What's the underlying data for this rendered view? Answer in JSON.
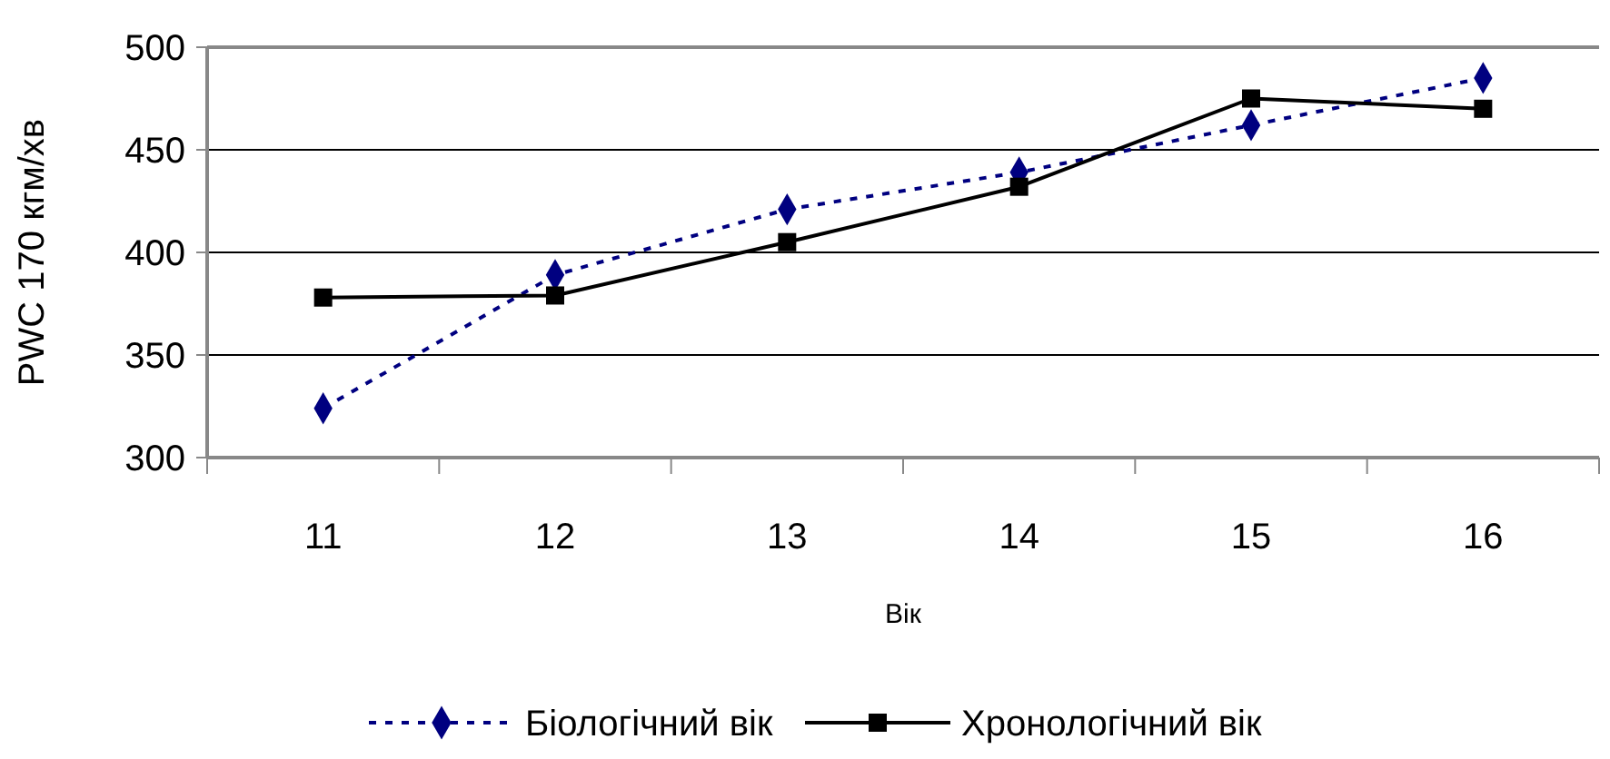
{
  "chart_data": {
    "type": "line",
    "xlabel": "Вік",
    "ylabel": "PWC 170 кгм/хв",
    "categories": [
      "11",
      "12",
      "13",
      "14",
      "15",
      "16"
    ],
    "series": [
      {
        "name": "Біологічний вік",
        "color": "#000080",
        "values": [
          324,
          389,
          421,
          439,
          462,
          485
        ],
        "marker": "diamond",
        "line_style": "dashed"
      },
      {
        "name": "Хронологічний вік",
        "color": "#000000",
        "values": [
          378,
          379,
          405,
          432,
          475,
          470
        ],
        "marker": "square",
        "line_style": "solid"
      }
    ],
    "ylim": [
      300,
      500
    ],
    "yticks": [
      300,
      350,
      400,
      450,
      500
    ],
    "grid": "y",
    "legend": "bottom"
  }
}
